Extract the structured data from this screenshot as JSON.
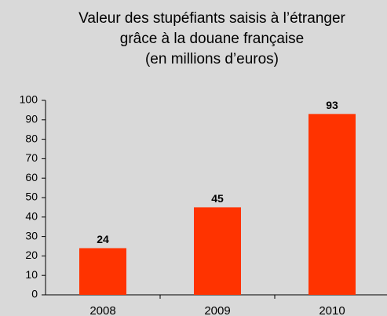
{
  "chart_data": {
    "type": "bar",
    "title": [
      "Valeur des stupéfiants saisis à l’étranger",
      "grâce à la douane française",
      "(en millions d’euros)"
    ],
    "categories": [
      "2008",
      "2009",
      "2010"
    ],
    "values": [
      24,
      45,
      93
    ],
    "color": "#ff3300",
    "ylim": [
      0,
      100
    ],
    "yticks": [
      0,
      10,
      20,
      30,
      40,
      50,
      60,
      70,
      80,
      90,
      100
    ],
    "grid": false
  }
}
